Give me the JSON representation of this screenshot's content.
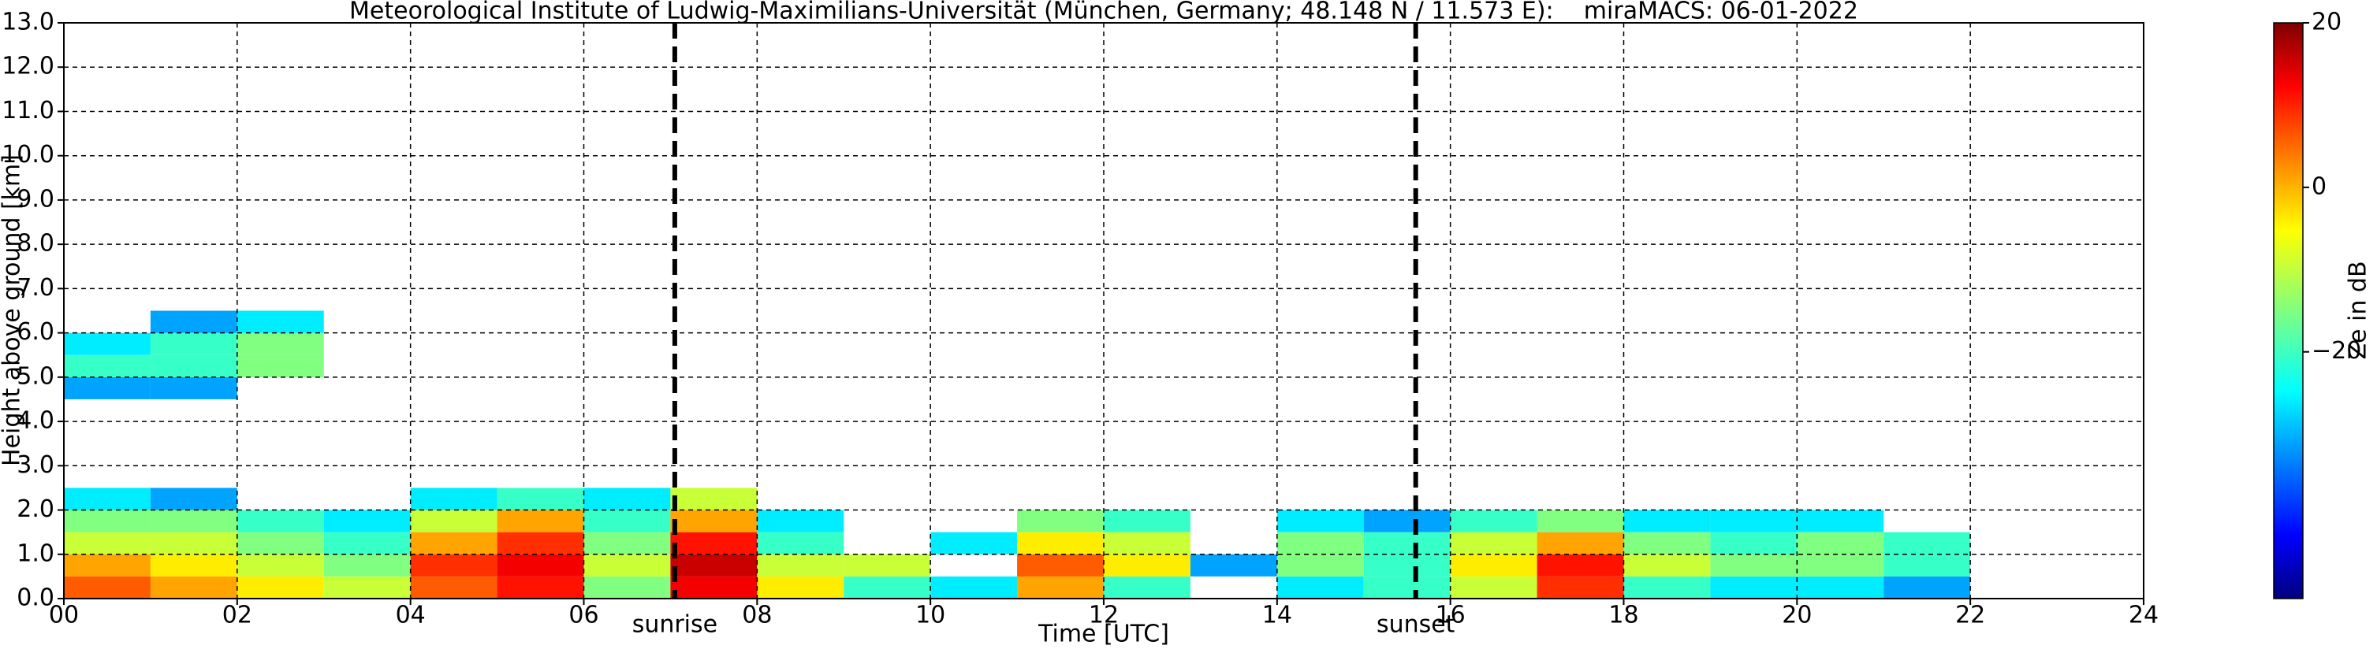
{
  "chart_data": {
    "type": "heatmap",
    "title": "Meteorological Institute of Ludwig-Maximilians-Universität (München, Germany; 48.148 N / 11.573 E):    miraMACS: 06-01-2022",
    "xlabel": "Time [UTC]",
    "ylabel": "Height above ground [km]",
    "colorbar_label": "Ze in dB",
    "xlim": [
      0,
      24
    ],
    "ylim": [
      0,
      13
    ],
    "xticks": [
      {
        "value": 0,
        "label": "00"
      },
      {
        "value": 2,
        "label": "02"
      },
      {
        "value": 4,
        "label": "04"
      },
      {
        "value": 6,
        "label": "06"
      },
      {
        "value": 8,
        "label": "08"
      },
      {
        "value": 10,
        "label": "10"
      },
      {
        "value": 12,
        "label": "12"
      },
      {
        "value": 14,
        "label": "14"
      },
      {
        "value": 16,
        "label": "16"
      },
      {
        "value": 18,
        "label": "18"
      },
      {
        "value": 20,
        "label": "20"
      },
      {
        "value": 22,
        "label": "22"
      },
      {
        "value": 24,
        "label": "24"
      }
    ],
    "yticks": [
      {
        "value": 0,
        "label": "0.0"
      },
      {
        "value": 1,
        "label": "1.0"
      },
      {
        "value": 2,
        "label": "2.0"
      },
      {
        "value": 3,
        "label": "3.0"
      },
      {
        "value": 4,
        "label": "4.0"
      },
      {
        "value": 5,
        "label": "5.0"
      },
      {
        "value": 6,
        "label": "6.0"
      },
      {
        "value": 7,
        "label": "7.0"
      },
      {
        "value": 8,
        "label": "8.0"
      },
      {
        "value": 9,
        "label": "9.0"
      },
      {
        "value": 10,
        "label": "10.0"
      },
      {
        "value": 11,
        "label": "11.0"
      },
      {
        "value": 12,
        "label": "12.0"
      },
      {
        "value": 13,
        "label": "13.0"
      }
    ],
    "grid": true,
    "clim": [
      -50,
      20
    ],
    "cticks": [
      20,
      0,
      {
        "value": -20,
        "label": "−20"
      }
    ],
    "markers": [
      {
        "label": "sunrise",
        "x": 7.05
      },
      {
        "label": "sunset",
        "x": 15.6
      }
    ],
    "x_edges": [
      0,
      1,
      2,
      3,
      4,
      5,
      6,
      7,
      8,
      9,
      10,
      11,
      12,
      13,
      14,
      15,
      16,
      17,
      18,
      19,
      20,
      21,
      22
    ],
    "y_edges": [
      0,
      0.5,
      1,
      1.5,
      2,
      2.5,
      4.5,
      5,
      5.5,
      6,
      6.5
    ],
    "z": [
      [
        5,
        0,
        -5,
        -10,
        5,
        10,
        -15,
        12,
        -5,
        -20,
        -25,
        0,
        -20,
        null,
        -25,
        -20,
        -10,
        8,
        -20,
        -25,
        -25,
        -30
      ],
      [
        0,
        -5,
        -10,
        -15,
        8,
        12,
        -10,
        15,
        -10,
        -10,
        null,
        5,
        -5,
        -30,
        -15,
        -20,
        -5,
        10,
        -10,
        -15,
        -15,
        -20
      ],
      [
        -10,
        -10,
        -15,
        -20,
        0,
        8,
        -15,
        10,
        -20,
        null,
        -25,
        -5,
        -10,
        null,
        -15,
        -20,
        -10,
        0,
        -15,
        -20,
        -15,
        -20
      ],
      [
        -15,
        -15,
        -20,
        -25,
        -10,
        0,
        -20,
        0,
        -25,
        null,
        null,
        -15,
        -20,
        null,
        -25,
        -30,
        -20,
        -15,
        -25,
        -25,
        -25,
        null
      ],
      [
        -25,
        -30,
        null,
        null,
        -25,
        -20,
        -25,
        -10,
        null,
        null,
        null,
        null,
        null,
        null,
        null,
        null,
        null,
        null,
        null,
        null,
        null,
        null
      ],
      [
        null,
        null,
        null,
        null,
        null,
        null,
        null,
        null,
        null,
        null,
        null,
        null,
        null,
        null,
        null,
        null,
        null,
        null,
        null,
        null,
        null,
        null
      ],
      [
        -30,
        -30,
        null,
        null,
        null,
        null,
        null,
        null,
        null,
        null,
        null,
        null,
        null,
        null,
        null,
        null,
        null,
        null,
        null,
        null,
        null,
        null
      ],
      [
        -20,
        -20,
        -15,
        null,
        null,
        null,
        null,
        null,
        null,
        null,
        null,
        null,
        null,
        null,
        null,
        null,
        null,
        null,
        null,
        null,
        null,
        null
      ],
      [
        -25,
        -20,
        -15,
        null,
        null,
        null,
        null,
        null,
        null,
        null,
        null,
        null,
        null,
        null,
        null,
        null,
        null,
        null,
        null,
        null,
        null,
        null
      ],
      [
        null,
        -30,
        -25,
        null,
        null,
        null,
        null,
        null,
        null,
        null,
        null,
        null,
        null,
        null,
        null,
        null,
        null,
        null,
        null,
        null,
        null,
        null
      ]
    ]
  }
}
